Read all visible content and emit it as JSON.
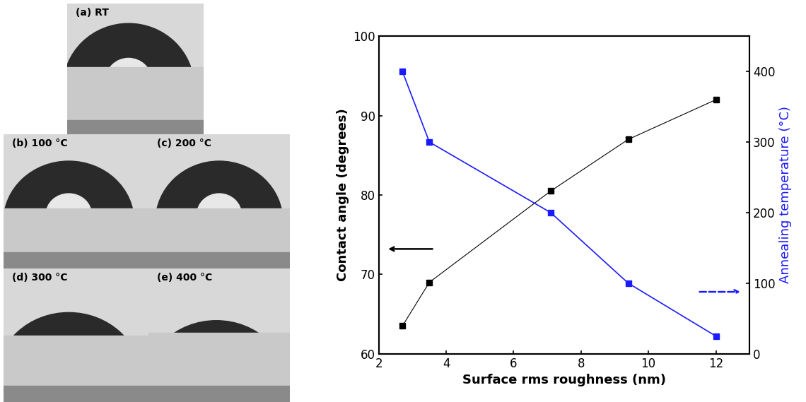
{
  "chart_data": {
    "type": "line",
    "xlabel": "Surface rms roughness (nm)",
    "ylabel": "Contact angle (degrees)",
    "y2label": "Annealing temperature (°C)",
    "x": [
      2.7,
      3.5,
      7.1,
      9.4,
      12.0
    ],
    "series": [
      {
        "color": "#000000",
        "marker": "square",
        "line_style": "solid",
        "values": [
          63.5,
          69,
          80.5,
          87,
          92
        ]
      },
      {
        "color": "#1a1aff",
        "marker": "square",
        "line_style": "solid",
        "axis": "y2",
        "values": [
          400,
          300,
          200,
          100,
          25
        ]
      }
    ],
    "xlim": [
      2,
      13
    ],
    "xticks": [
      2,
      4,
      6,
      8,
      10,
      12
    ],
    "ylim": [
      60,
      100
    ],
    "yticks": [
      60,
      70,
      80,
      90,
      100
    ],
    "y2lim": [
      0,
      450
    ],
    "y2ticks": [
      0,
      100,
      200,
      300,
      400
    ],
    "grid": false
  },
  "image_panels": {
    "labels": [
      "(a) RT",
      "(b) 100 °C",
      "(c) 200 °C",
      "(d) 300 °C",
      "(e) 400 °C"
    ]
  }
}
